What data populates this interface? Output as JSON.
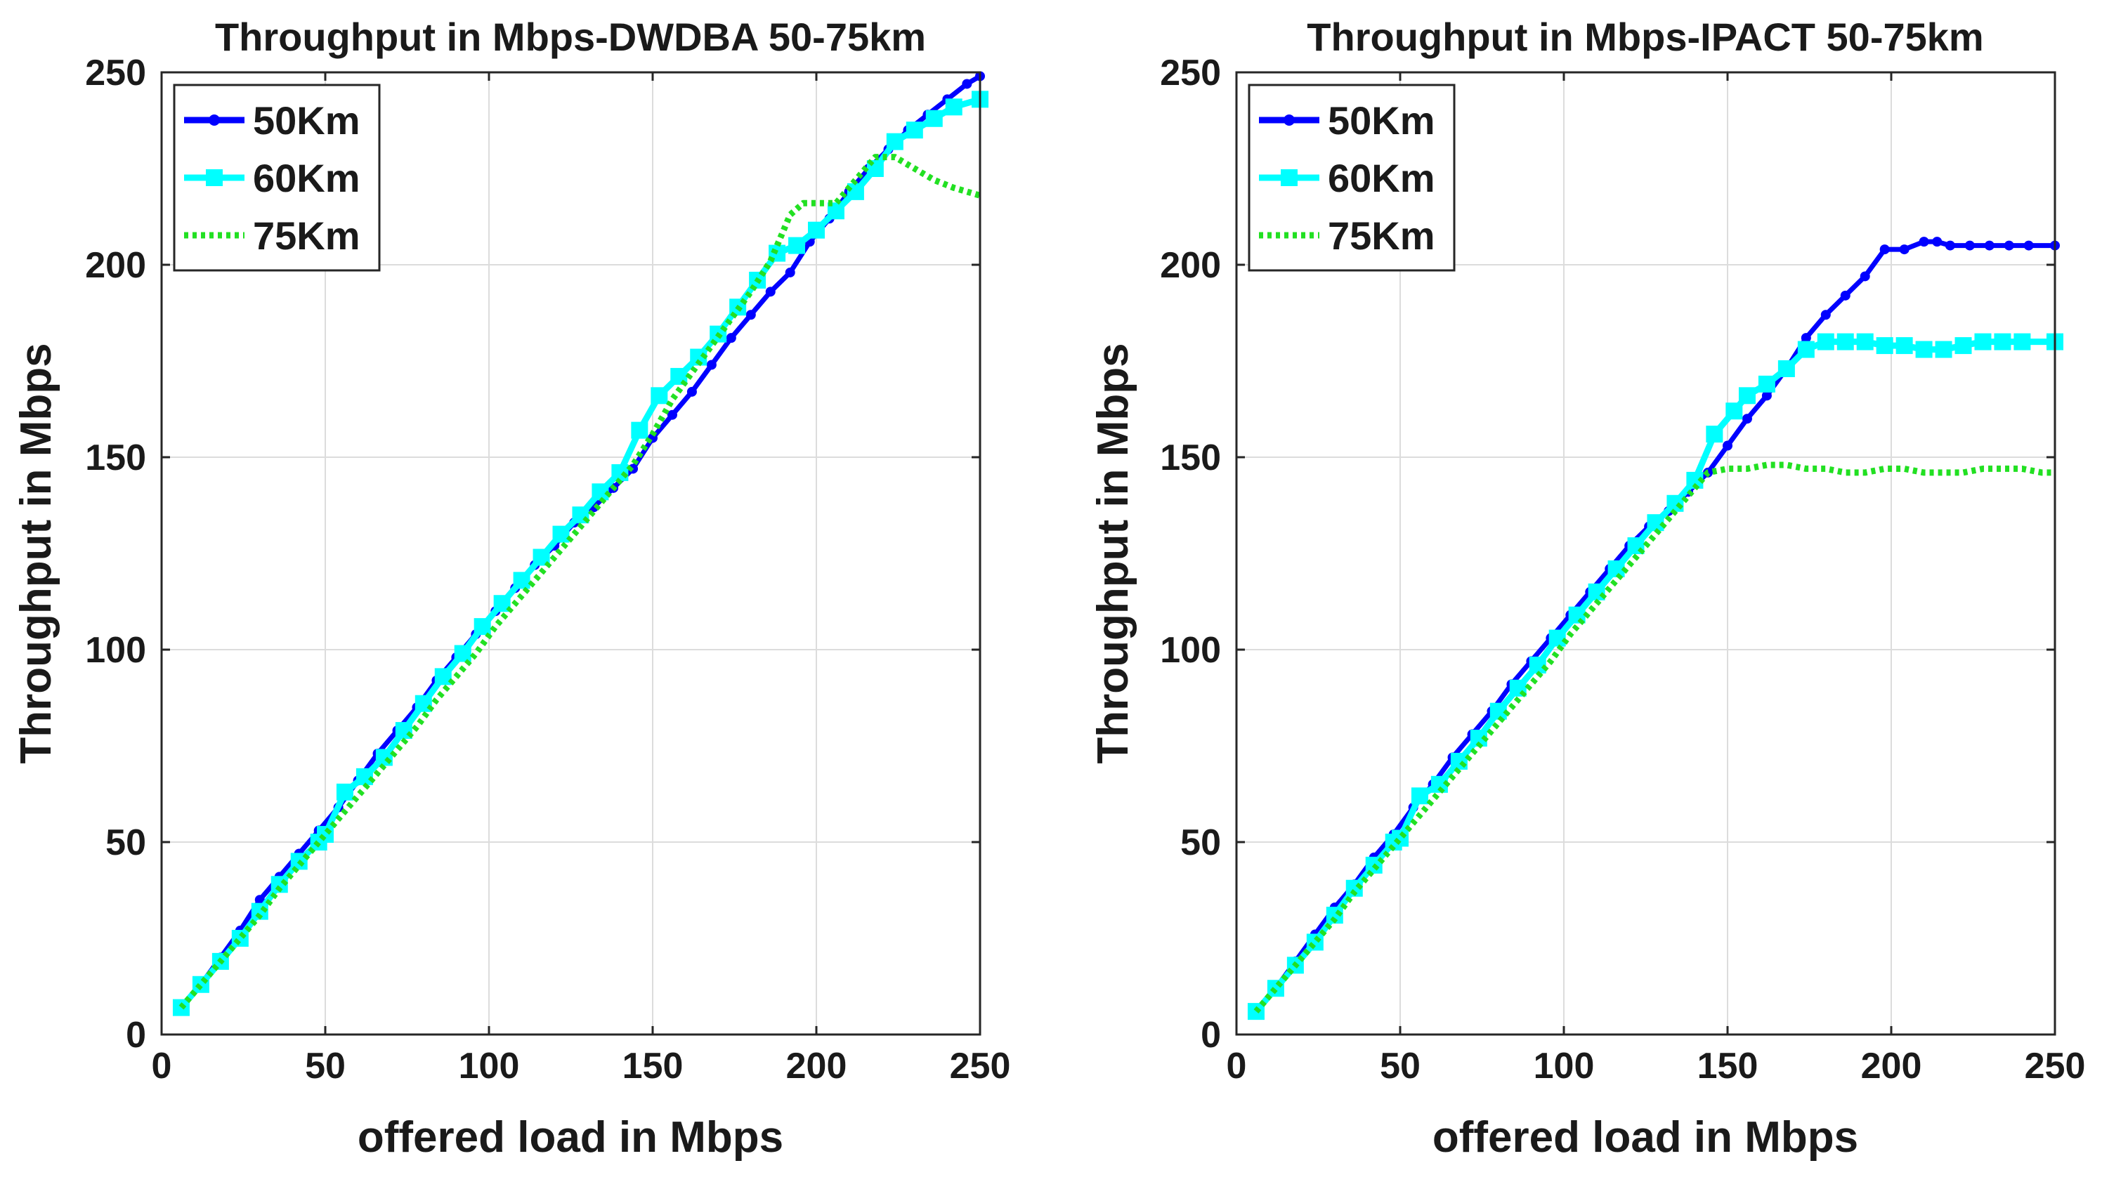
{
  "chart_data": [
    {
      "type": "line",
      "title": "Throughput in Mbps-DWDBA 50-75km",
      "xlabel": "offered load in Mbps",
      "ylabel": "Throughput in Mbps",
      "xlim": [
        0,
        250
      ],
      "ylim": [
        0,
        250
      ],
      "xticks": [
        0,
        50,
        100,
        150,
        200,
        250
      ],
      "yticks": [
        0,
        50,
        100,
        150,
        200,
        250
      ],
      "grid": true,
      "legend_position": "top-left",
      "series": [
        {
          "name": "50Km",
          "color": "#0000ff",
          "marker": "dot",
          "dash": "solid",
          "x": [
            6,
            12,
            18,
            24,
            30,
            36,
            42,
            48,
            54,
            60,
            66,
            72,
            78,
            84,
            90,
            96,
            102,
            108,
            114,
            120,
            126,
            132,
            138,
            144,
            150,
            156,
            162,
            168,
            174,
            180,
            186,
            192,
            198,
            204,
            210,
            216,
            222,
            228,
            234,
            240,
            246,
            250
          ],
          "y": [
            7,
            13,
            20,
            27,
            35,
            41,
            47,
            53,
            59,
            66,
            73,
            79,
            85,
            92,
            98,
            104,
            110,
            116,
            122,
            127,
            133,
            137,
            142,
            147,
            155,
            161,
            167,
            174,
            181,
            187,
            193,
            198,
            206,
            212,
            219,
            225,
            230,
            235,
            239,
            243,
            247,
            249
          ]
        },
        {
          "name": "60Km",
          "color": "#00ffff",
          "marker": "square",
          "dash": "solid",
          "x": [
            6,
            12,
            18,
            24,
            30,
            36,
            42,
            48,
            50,
            56,
            62,
            68,
            74,
            80,
            86,
            92,
            98,
            104,
            110,
            116,
            122,
            128,
            134,
            140,
            146,
            152,
            158,
            164,
            170,
            176,
            182,
            188,
            194,
            200,
            206,
            212,
            218,
            224,
            230,
            236,
            242,
            250
          ],
          "y": [
            7,
            13,
            19,
            25,
            32,
            39,
            45,
            50,
            52,
            63,
            67,
            72,
            79,
            86,
            93,
            99,
            106,
            112,
            118,
            124,
            130,
            135,
            141,
            146,
            157,
            166,
            171,
            176,
            182,
            189,
            196,
            203,
            205,
            209,
            214,
            219,
            225,
            232,
            235,
            238,
            241,
            243
          ]
        },
        {
          "name": "75Km",
          "color": "#22e022",
          "marker": "none",
          "dash": "dotted",
          "x": [
            6,
            12,
            18,
            24,
            30,
            36,
            42,
            48,
            54,
            60,
            66,
            72,
            78,
            84,
            90,
            96,
            102,
            108,
            114,
            120,
            126,
            132,
            138,
            144,
            150,
            156,
            162,
            168,
            174,
            180,
            186,
            192,
            196,
            200,
            206,
            212,
            218,
            224,
            230,
            236,
            242,
            250
          ],
          "y": [
            7,
            13,
            19,
            25,
            31,
            38,
            44,
            50,
            56,
            62,
            68,
            74,
            80,
            87,
            93,
            99,
            106,
            112,
            118,
            124,
            130,
            136,
            142,
            148,
            156,
            165,
            172,
            179,
            186,
            193,
            201,
            213,
            216,
            216,
            216,
            222,
            228,
            228,
            225,
            222,
            220,
            218
          ]
        }
      ]
    },
    {
      "type": "line",
      "title": "Throughput in Mbps-IPACT 50-75km",
      "xlabel": "offered load in Mbps",
      "ylabel": "Throughput in Mbps",
      "xlim": [
        0,
        250
      ],
      "ylim": [
        0,
        250
      ],
      "xticks": [
        0,
        50,
        100,
        150,
        200,
        250
      ],
      "yticks": [
        0,
        50,
        100,
        150,
        200,
        250
      ],
      "grid": true,
      "legend_position": "top-left",
      "series": [
        {
          "name": "50Km",
          "color": "#0000ff",
          "marker": "dot",
          "dash": "solid",
          "x": [
            6,
            12,
            18,
            24,
            30,
            36,
            42,
            48,
            54,
            60,
            66,
            72,
            78,
            84,
            90,
            96,
            102,
            108,
            114,
            120,
            126,
            132,
            138,
            144,
            150,
            156,
            162,
            168,
            174,
            180,
            186,
            192,
            198,
            204,
            210,
            214,
            218,
            224,
            230,
            236,
            242,
            250
          ],
          "y": [
            6,
            12,
            19,
            26,
            33,
            39,
            46,
            52,
            59,
            65,
            72,
            78,
            84,
            91,
            97,
            103,
            109,
            115,
            121,
            127,
            132,
            136,
            141,
            146,
            153,
            160,
            166,
            173,
            181,
            187,
            192,
            197,
            204,
            204,
            206,
            206,
            205,
            205,
            205,
            205,
            205,
            205
          ]
        },
        {
          "name": "60Km",
          "color": "#00ffff",
          "marker": "square",
          "dash": "solid",
          "x": [
            6,
            12,
            18,
            24,
            30,
            36,
            42,
            48,
            50,
            56,
            62,
            68,
            74,
            80,
            86,
            92,
            98,
            104,
            110,
            116,
            122,
            128,
            134,
            140,
            146,
            152,
            156,
            162,
            168,
            174,
            180,
            186,
            192,
            198,
            204,
            210,
            216,
            222,
            228,
            234,
            240,
            250
          ],
          "y": [
            6,
            12,
            18,
            24,
            31,
            38,
            44,
            50,
            51,
            62,
            65,
            71,
            77,
            84,
            90,
            96,
            103,
            109,
            115,
            121,
            127,
            133,
            138,
            144,
            156,
            162,
            166,
            169,
            173,
            178,
            180,
            180,
            180,
            179,
            179,
            178,
            178,
            179,
            180,
            180,
            180,
            180
          ]
        },
        {
          "name": "75Km",
          "color": "#22e022",
          "marker": "none",
          "dash": "dotted",
          "x": [
            6,
            12,
            18,
            24,
            30,
            36,
            42,
            48,
            54,
            60,
            66,
            72,
            78,
            84,
            90,
            96,
            102,
            108,
            114,
            120,
            126,
            132,
            138,
            144,
            150,
            156,
            162,
            168,
            174,
            180,
            186,
            192,
            198,
            204,
            210,
            216,
            222,
            228,
            234,
            240,
            246,
            250
          ],
          "y": [
            6,
            12,
            18,
            24,
            30,
            37,
            43,
            49,
            55,
            61,
            67,
            73,
            79,
            85,
            91,
            97,
            104,
            110,
            116,
            122,
            128,
            134,
            140,
            146,
            147,
            147,
            148,
            148,
            147,
            147,
            146,
            146,
            147,
            147,
            146,
            146,
            146,
            147,
            147,
            147,
            146,
            146
          ]
        }
      ]
    }
  ]
}
